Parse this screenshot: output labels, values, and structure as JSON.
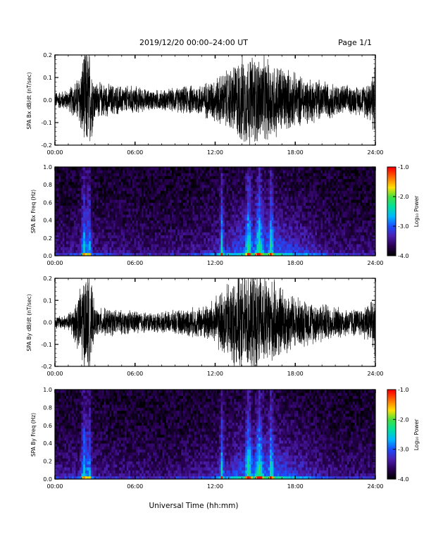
{
  "header": {
    "date_range": "2019/12/20  00:00–24:00 UT",
    "page": "Page 1/1"
  },
  "chart_data": [
    {
      "type": "line",
      "ylabel": "SPA Bx dB/dt (nT/sec)",
      "xlim": [
        0,
        24
      ],
      "ylim": [
        -0.2,
        0.2
      ],
      "x_ticks": [
        "00:00",
        "06:00",
        "12:00",
        "18:00",
        "24:00"
      ],
      "y_ticks": [
        "-0.2",
        "-0.1",
        "0.0",
        "0.1",
        "0.2"
      ],
      "envelope": {
        "hours": [
          0,
          1,
          1.8,
          2.2,
          2.6,
          3,
          4,
          5,
          6,
          7,
          8,
          9,
          10,
          11,
          12,
          13,
          14,
          15,
          16,
          17,
          18,
          19,
          20,
          21,
          22,
          23,
          23.7,
          24
        ],
        "amplitude": [
          0.04,
          0.05,
          0.12,
          0.25,
          0.25,
          0.09,
          0.08,
          0.07,
          0.07,
          0.05,
          0.05,
          0.06,
          0.07,
          0.08,
          0.11,
          0.15,
          0.22,
          0.22,
          0.2,
          0.17,
          0.13,
          0.11,
          0.1,
          0.08,
          0.07,
          0.07,
          0.12,
          0.19
        ]
      }
    },
    {
      "type": "heatmap",
      "ylabel": "SPA Bx Freq (Hz)",
      "colorbar_label": "Log₁₀ Power",
      "xlim": [
        0,
        24
      ],
      "ylim": [
        0,
        1
      ],
      "clim": [
        -4,
        -1
      ],
      "x_ticks": [
        "00:00",
        "06:00",
        "12:00",
        "18:00",
        "24:00"
      ],
      "y_ticks": [
        "0.0",
        "0.2",
        "0.4",
        "0.6",
        "0.8",
        "1.0"
      ],
      "colorbar_ticks": [
        "-1.0",
        "-2.0",
        "-3.0",
        "-4.0"
      ],
      "colormap": [
        "#000000",
        "#2a0055",
        "#4b1fb0",
        "#1a4dff",
        "#00b8ff",
        "#00e0a0",
        "#40e040",
        "#ffe000",
        "#ff7000",
        "#ff0000"
      ]
    },
    {
      "type": "line",
      "ylabel": "SPA By dB/dt (nT/sec)",
      "xlim": [
        0,
        24
      ],
      "ylim": [
        -0.2,
        0.2
      ],
      "x_ticks": [
        "00:00",
        "06:00",
        "12:00",
        "18:00",
        "24:00"
      ],
      "y_ticks": [
        "-0.2",
        "-0.1",
        "0.0",
        "0.1",
        "0.2"
      ],
      "envelope": {
        "hours": [
          0,
          1,
          1.8,
          2.2,
          2.6,
          3,
          4,
          5,
          6,
          7,
          8,
          9,
          10,
          11,
          12,
          13,
          14,
          15,
          16,
          17,
          18,
          19,
          20,
          21,
          22,
          23,
          23.7,
          24
        ],
        "amplitude": [
          0.03,
          0.04,
          0.15,
          0.25,
          0.25,
          0.07,
          0.07,
          0.06,
          0.06,
          0.05,
          0.05,
          0.06,
          0.07,
          0.08,
          0.12,
          0.2,
          0.25,
          0.25,
          0.22,
          0.18,
          0.13,
          0.11,
          0.1,
          0.08,
          0.07,
          0.07,
          0.12,
          0.17
        ]
      }
    },
    {
      "type": "heatmap",
      "ylabel": "SPA By Freq (Hz)",
      "colorbar_label": "Log₁₀ Power",
      "xlim": [
        0,
        24
      ],
      "ylim": [
        0,
        1
      ],
      "clim": [
        -4,
        -1
      ],
      "x_ticks": [
        "00:00",
        "06:00",
        "12:00",
        "18:00",
        "24:00"
      ],
      "y_ticks": [
        "0.0",
        "0.2",
        "0.4",
        "0.6",
        "0.8",
        "1.0"
      ],
      "colorbar_ticks": [
        "-1.0",
        "-2.0",
        "-3.0",
        "-4.0"
      ],
      "colormap": [
        "#000000",
        "#2a0055",
        "#4b1fb0",
        "#1a4dff",
        "#00b8ff",
        "#00e0a0",
        "#40e040",
        "#ffe000",
        "#ff7000",
        "#ff0000"
      ]
    }
  ],
  "xlabel": "Universal Time (hh:mm)"
}
